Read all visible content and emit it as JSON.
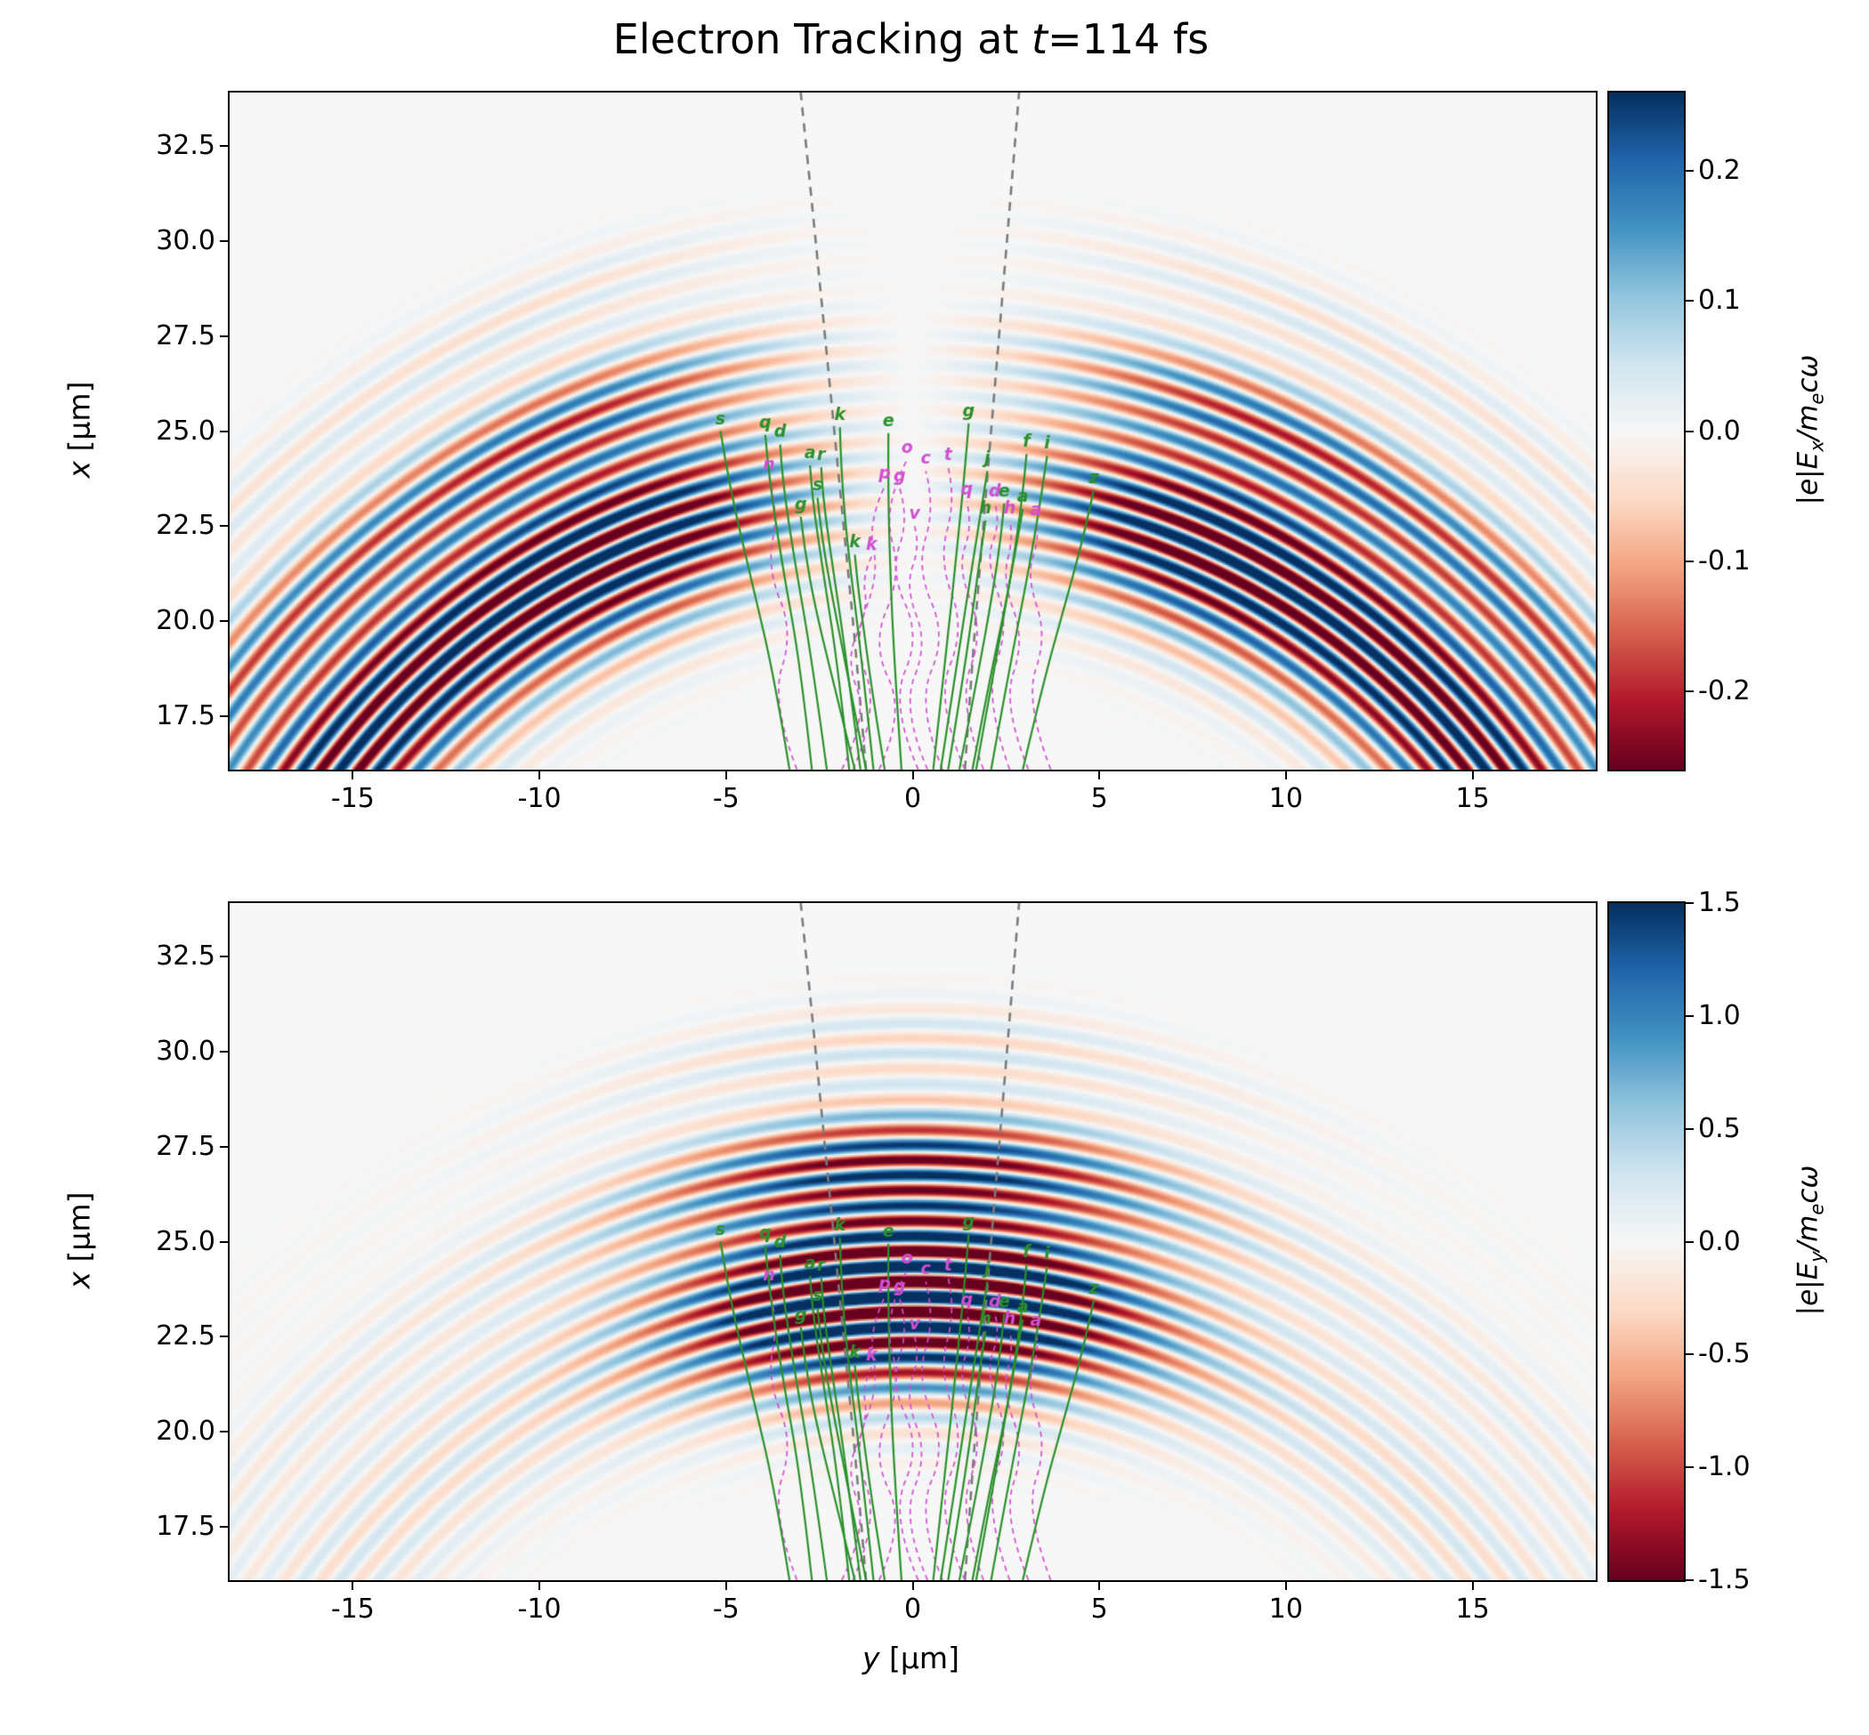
{
  "figure": {
    "title": {
      "prefix": "Electron Tracking at ",
      "var": "t",
      "suffix": "=114 fs"
    },
    "xlabel": {
      "var": "y",
      "unit": " [μm]"
    },
    "background": "#ffffff"
  },
  "chart_data": [
    {
      "type": "heatmap",
      "panel": "top",
      "field": "E_x",
      "colormap": "RdBu",
      "xlim": [
        -18.3,
        18.3
      ],
      "ylim": [
        16.1,
        33.9
      ],
      "xtick_values": [
        -15,
        -10,
        -5,
        0,
        5,
        10,
        15
      ],
      "xtick_labels": [
        "-15",
        "-10",
        "-5",
        "0",
        "5",
        "10",
        "15"
      ],
      "ytick_values": [
        17.5,
        20.0,
        22.5,
        25.0,
        27.5,
        30.0,
        32.5
      ],
      "ytick_labels": [
        "17.5",
        "20.0",
        "22.5",
        "25.0",
        "27.5",
        "30.0",
        "32.5"
      ],
      "ylabel": {
        "var": "x",
        "unit": " [μm]"
      },
      "colorbar": {
        "vmin": -0.26,
        "vmax": 0.26,
        "tick_values": [
          0.2,
          0.1,
          0.0,
          -0.1,
          -0.2
        ],
        "tick_labels": [
          "0.2",
          "0.1",
          "0.0",
          "-0.1",
          "-0.2"
        ],
        "label_parts": {
          "pre": "|e|E",
          "sub": "x",
          "mid": "/m",
          "sub2": "e",
          "post": "cω"
        }
      },
      "field_model": {
        "focus_x": 4.0,
        "wavelength": 0.8,
        "phase_offset": 0.15,
        "gain": 1.7,
        "angular_type": "transverse_lobes",
        "theta_peak": 0.32,
        "theta_width": 0.22,
        "base": 0.72,
        "boost": 0.48,
        "envelopes": [
          {
            "r": 19.6,
            "sigma": 2.3,
            "amp": 1.0
          },
          {
            "r": 23.2,
            "sigma": 1.3,
            "amp": 0.5
          },
          {
            "r": 26.2,
            "sigma": 1.1,
            "amp": 0.12
          }
        ]
      }
    },
    {
      "type": "heatmap",
      "panel": "bottom",
      "field": "E_y",
      "colormap": "RdBu",
      "xlim": [
        -18.3,
        18.3
      ],
      "ylim": [
        16.1,
        33.9
      ],
      "xtick_values": [
        -15,
        -10,
        -5,
        0,
        5,
        10,
        15
      ],
      "xtick_labels": [
        "-15",
        "-10",
        "-5",
        "0",
        "5",
        "10",
        "15"
      ],
      "ytick_values": [
        17.5,
        20.0,
        22.5,
        25.0,
        27.5,
        30.0,
        32.5
      ],
      "ytick_labels": [
        "17.5",
        "20.0",
        "22.5",
        "25.0",
        "27.5",
        "30.0",
        "32.5"
      ],
      "ylabel": {
        "var": "x",
        "unit": " [μm]"
      },
      "colorbar": {
        "vmin": -1.5,
        "vmax": 1.5,
        "tick_values": [
          1.5,
          1.0,
          0.5,
          0.0,
          -0.5,
          -1.0,
          -1.5
        ],
        "tick_labels": [
          "1.5",
          "1.0",
          "0.5",
          "0.0",
          "-0.5",
          "-1.0",
          "-1.5"
        ],
        "label_parts": {
          "pre": "|e|E",
          "sub": "y",
          "mid": "/m",
          "sub2": "e",
          "post": "cω"
        }
      },
      "field_model": {
        "focus_x": 4.0,
        "wavelength": 0.8,
        "phase_offset": 0.15,
        "gain": 1.9,
        "angular_type": "axial_gaussian",
        "theta_sigma": 0.3,
        "wing": 0.1,
        "envelopes": [
          {
            "r": 19.6,
            "sigma": 2.3,
            "amp": 1.0
          },
          {
            "r": 23.2,
            "sigma": 1.3,
            "amp": 0.5
          },
          {
            "r": 26.2,
            "sigma": 1.1,
            "amp": 0.12
          }
        ]
      }
    }
  ],
  "overlay": {
    "cone_color": "#7a7a7a",
    "green_color": "#2b8f2b",
    "magenta_color": "#d14fd1",
    "cone_lines": [
      {
        "points": [
          [
            -1.25,
            16.1
          ],
          [
            -1.5,
            19.0
          ],
          [
            -1.8,
            22.0
          ],
          [
            -2.1,
            25.0
          ],
          [
            -2.45,
            28.5
          ],
          [
            -2.75,
            31.5
          ],
          [
            -3.0,
            33.9
          ]
        ]
      },
      {
        "points": [
          [
            1.4,
            16.1
          ],
          [
            1.6,
            19.0
          ],
          [
            1.85,
            22.0
          ],
          [
            2.1,
            25.0
          ],
          [
            2.4,
            28.5
          ],
          [
            2.65,
            31.5
          ],
          [
            2.85,
            33.9
          ]
        ]
      }
    ],
    "green_trajectories": [
      {
        "letter": "s",
        "points": [
          [
            -3.3,
            16.1
          ],
          [
            -3.7,
            18.5
          ],
          [
            -4.3,
            21.0
          ],
          [
            -4.9,
            23.5
          ],
          [
            -5.15,
            25.0
          ]
        ]
      },
      {
        "letter": "q",
        "points": [
          [
            -2.7,
            16.1
          ],
          [
            -3.0,
            18.8
          ],
          [
            -3.5,
            21.5
          ],
          [
            -3.85,
            23.8
          ],
          [
            -3.95,
            24.9
          ]
        ]
      },
      {
        "letter": "d",
        "points": [
          [
            -2.3,
            16.1
          ],
          [
            -2.7,
            19.0
          ],
          [
            -3.2,
            21.8
          ],
          [
            -3.5,
            23.8
          ],
          [
            -3.55,
            24.65
          ]
        ]
      },
      {
        "letter": "a",
        "points": [
          [
            -1.7,
            16.1
          ],
          [
            -2.0,
            18.8
          ],
          [
            -2.4,
            21.3
          ],
          [
            -2.7,
            23.3
          ],
          [
            -2.75,
            24.1
          ]
        ]
      },
      {
        "letter": "r",
        "points": [
          [
            -1.4,
            16.1
          ],
          [
            -1.8,
            19.2
          ],
          [
            -2.2,
            21.8
          ],
          [
            -2.42,
            23.4
          ],
          [
            -2.45,
            24.05
          ]
        ]
      },
      {
        "letter": "k",
        "points": [
          [
            -1.05,
            16.1
          ],
          [
            -1.4,
            19.3
          ],
          [
            -1.75,
            22.0
          ],
          [
            -1.92,
            24.0
          ],
          [
            -1.95,
            25.1
          ]
        ]
      },
      {
        "letter": "e",
        "points": [
          [
            -0.3,
            16.1
          ],
          [
            -0.5,
            19.0
          ],
          [
            -0.62,
            21.8
          ],
          [
            -0.66,
            23.8
          ],
          [
            -0.65,
            24.95
          ]
        ]
      },
      {
        "letter": "g",
        "points": [
          [
            0.55,
            16.1
          ],
          [
            0.9,
            19.2
          ],
          [
            1.2,
            22.0
          ],
          [
            1.42,
            24.2
          ],
          [
            1.5,
            25.2
          ]
        ]
      },
      {
        "letter": "s",
        "points": [
          [
            -1.25,
            16.1
          ],
          [
            -1.7,
            18.4
          ],
          [
            -2.15,
            20.6
          ],
          [
            -2.45,
            22.3
          ],
          [
            -2.55,
            23.25
          ]
        ]
      },
      {
        "letter": "g",
        "points": [
          [
            -1.55,
            16.1
          ],
          [
            -2.1,
            18.3
          ],
          [
            -2.6,
            20.3
          ],
          [
            -2.9,
            21.9
          ],
          [
            -3.0,
            22.75
          ]
        ]
      },
      {
        "letter": "k",
        "points": [
          [
            -0.75,
            16.1
          ],
          [
            -1.05,
            17.9
          ],
          [
            -1.3,
            19.7
          ],
          [
            -1.48,
            21.0
          ],
          [
            -1.55,
            21.75
          ]
        ]
      },
      {
        "letter": "f",
        "points": [
          [
            1.7,
            16.1
          ],
          [
            2.2,
            18.8
          ],
          [
            2.65,
            21.3
          ],
          [
            2.95,
            23.3
          ],
          [
            3.05,
            24.4
          ]
        ]
      },
      {
        "letter": "i",
        "points": [
          [
            2.1,
            16.1
          ],
          [
            2.6,
            18.8
          ],
          [
            3.1,
            21.3
          ],
          [
            3.45,
            23.3
          ],
          [
            3.6,
            24.35
          ]
        ]
      },
      {
        "letter": "e",
        "points": [
          [
            1.25,
            16.1
          ],
          [
            1.75,
            18.6
          ],
          [
            2.15,
            20.8
          ],
          [
            2.38,
            22.3
          ],
          [
            2.45,
            23.1
          ]
        ]
      },
      {
        "letter": "a",
        "points": [
          [
            1.6,
            16.1
          ],
          [
            2.05,
            18.4
          ],
          [
            2.5,
            20.5
          ],
          [
            2.8,
            22.1
          ],
          [
            2.95,
            22.95
          ]
        ]
      },
      {
        "letter": "z",
        "points": [
          [
            2.95,
            16.1
          ],
          [
            3.5,
            18.4
          ],
          [
            4.1,
            20.5
          ],
          [
            4.6,
            22.3
          ],
          [
            4.85,
            23.45
          ]
        ]
      },
      {
        "letter": "h",
        "points": [
          [
            0.95,
            16.1
          ],
          [
            1.3,
            18.2
          ],
          [
            1.6,
            20.2
          ],
          [
            1.82,
            21.8
          ],
          [
            1.95,
            22.65
          ]
        ]
      },
      {
        "letter": "j",
        "points": [
          [
            0.75,
            16.1
          ],
          [
            1.2,
            19.0
          ],
          [
            1.6,
            21.5
          ],
          [
            1.88,
            23.2
          ],
          [
            2.0,
            23.95
          ]
        ]
      }
    ],
    "magenta_trajectories": [
      {
        "letter": "o",
        "points": [
          [
            -0.9,
            16.1
          ],
          [
            -0.2,
            17.6
          ],
          [
            -1.1,
            19.4
          ],
          [
            -0.3,
            21.2
          ],
          [
            -0.8,
            23.0
          ],
          [
            -0.15,
            24.25
          ]
        ]
      },
      {
        "letter": "c",
        "points": [
          [
            0.8,
            16.1
          ],
          [
            0.1,
            17.8
          ],
          [
            0.9,
            19.6
          ],
          [
            0.1,
            21.4
          ],
          [
            0.6,
            23.0
          ],
          [
            0.35,
            23.95
          ]
        ]
      },
      {
        "letter": "t",
        "points": [
          [
            1.4,
            16.1
          ],
          [
            0.6,
            17.9
          ],
          [
            1.4,
            19.8
          ],
          [
            0.7,
            21.6
          ],
          [
            1.15,
            23.2
          ],
          [
            0.95,
            24.05
          ]
        ]
      },
      {
        "letter": "p",
        "points": [
          [
            -1.6,
            16.1
          ],
          [
            -0.9,
            17.7
          ],
          [
            -1.6,
            19.5
          ],
          [
            -0.9,
            21.2
          ],
          [
            -1.2,
            22.6
          ],
          [
            -0.75,
            23.55
          ]
        ]
      },
      {
        "letter": "g",
        "points": [
          [
            0.15,
            16.1
          ],
          [
            -0.6,
            17.8
          ],
          [
            0.2,
            19.6
          ],
          [
            -0.6,
            21.3
          ],
          [
            -0.1,
            22.7
          ],
          [
            -0.35,
            23.5
          ]
        ]
      },
      {
        "letter": "q",
        "points": [
          [
            1.9,
            16.1
          ],
          [
            1.2,
            17.9
          ],
          [
            1.9,
            19.7
          ],
          [
            1.2,
            21.4
          ],
          [
            1.6,
            22.5
          ],
          [
            1.45,
            23.15
          ]
        ]
      },
      {
        "letter": "d",
        "points": [
          [
            2.6,
            16.1
          ],
          [
            1.9,
            18.0
          ],
          [
            2.6,
            19.9
          ],
          [
            1.95,
            21.6
          ],
          [
            2.35,
            22.6
          ],
          [
            2.2,
            23.1
          ]
        ]
      },
      {
        "letter": "h",
        "points": [
          [
            3.1,
            16.1
          ],
          [
            2.4,
            17.8
          ],
          [
            3.0,
            19.5
          ],
          [
            2.4,
            21.1
          ],
          [
            2.7,
            22.2
          ],
          [
            2.6,
            22.65
          ]
        ]
      },
      {
        "letter": "a",
        "points": [
          [
            3.7,
            16.1
          ],
          [
            3.0,
            17.9
          ],
          [
            3.6,
            19.6
          ],
          [
            3.05,
            21.2
          ],
          [
            3.4,
            22.2
          ],
          [
            3.3,
            22.6
          ]
        ]
      },
      {
        "letter": "k",
        "points": [
          [
            -1.9,
            16.1
          ],
          [
            -1.2,
            17.5
          ],
          [
            -1.8,
            19.0
          ],
          [
            -1.2,
            20.3
          ],
          [
            -1.35,
            21.2
          ],
          [
            -1.1,
            21.7
          ]
        ]
      },
      {
        "letter": "n",
        "points": [
          [
            -3.1,
            16.1
          ],
          [
            -3.8,
            17.9
          ],
          [
            -3.2,
            19.7
          ],
          [
            -3.9,
            21.4
          ],
          [
            -3.6,
            22.9
          ],
          [
            -3.85,
            23.8
          ]
        ]
      },
      {
        "letter": "v",
        "points": [
          [
            0.4,
            16.1
          ],
          [
            -0.3,
            17.7
          ],
          [
            0.4,
            19.4
          ],
          [
            -0.2,
            20.9
          ],
          [
            0.2,
            22.0
          ],
          [
            0.05,
            22.5
          ]
        ]
      }
    ]
  }
}
